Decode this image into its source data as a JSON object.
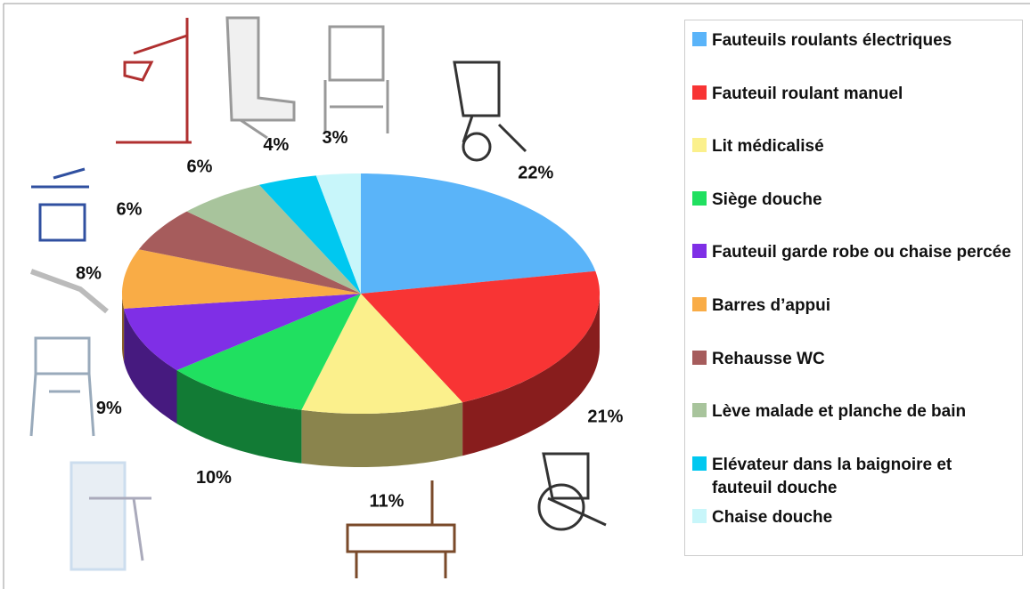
{
  "chart_data": {
    "type": "pie",
    "categories": [
      "Fauteuils roulants électriques",
      "Fauteuil roulant manuel",
      "Lit médicalisé",
      "Siège douche",
      "Fauteuil garde robe ou chaise percée",
      "Barres d’appui",
      "Rehausse WC",
      "Lève malade et planche de bain",
      "Elévateur dans la baignoire et fauteuil douche",
      "Chaise douche"
    ],
    "values": [
      22,
      21,
      11,
      10,
      9,
      8,
      6,
      6,
      4,
      3
    ],
    "value_labels": [
      "22%",
      "21%",
      "11%",
      "10%",
      "9%",
      "8%",
      "6%",
      "6%",
      "4%",
      "3%"
    ],
    "colors": [
      "#5ab4f9",
      "#f83434",
      "#fbf08c",
      "#20e060",
      "#7f2fe6",
      "#f9ac46",
      "#a65c5c",
      "#a8c49c",
      "#00c8f0",
      "#c8f6fa"
    ],
    "legend": "right"
  }
}
